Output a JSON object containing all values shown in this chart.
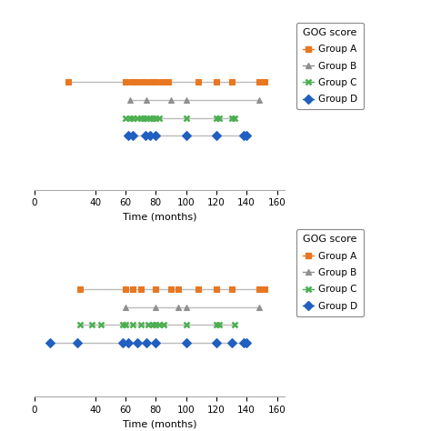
{
  "top_panel": {
    "group_A": {
      "y": 0.0,
      "points": [
        22,
        60,
        64,
        68,
        72,
        76,
        80,
        84,
        88,
        108,
        120,
        130,
        148,
        152
      ],
      "line_x": [
        22,
        152
      ]
    },
    "group_B": {
      "y": -0.07,
      "points": [
        63,
        74,
        90,
        100,
        148
      ],
      "line_x": [
        63,
        148
      ]
    },
    "group_C": {
      "y": -0.14,
      "points": [
        60,
        63,
        65,
        68,
        70,
        72,
        74,
        76,
        78,
        80,
        82,
        100,
        120,
        122,
        130,
        132
      ],
      "line_x": [
        60,
        132
      ]
    },
    "group_D": {
      "y": -0.21,
      "points": [
        62,
        65,
        73,
        76,
        80,
        100,
        120,
        138,
        140
      ],
      "line_x": [
        62,
        140
      ]
    }
  },
  "bottom_panel": {
    "group_A": {
      "y": 0.0,
      "points": [
        30,
        60,
        65,
        70,
        80,
        90,
        95,
        108,
        120,
        130,
        148,
        152
      ],
      "line_x": [
        30,
        152
      ]
    },
    "group_B": {
      "y": -0.07,
      "points": [
        60,
        80,
        95,
        100,
        148
      ],
      "line_x": [
        60,
        148
      ]
    },
    "group_C": {
      "y": -0.14,
      "points": [
        30,
        38,
        44,
        58,
        60,
        65,
        70,
        75,
        78,
        80,
        82,
        85,
        100,
        120,
        122,
        132
      ],
      "line_x": [
        30,
        132
      ]
    },
    "group_D": {
      "y": -0.21,
      "points": [
        10,
        28,
        58,
        62,
        68,
        74,
        80,
        100,
        120,
        130,
        138,
        140
      ],
      "line_x": [
        10,
        140
      ]
    }
  },
  "group_A_color": "#E87722",
  "group_B_color": "#909090",
  "group_C_color": "#4CAF50",
  "group_D_color": "#2060C0",
  "group_A_marker": "s",
  "group_B_marker": "^",
  "group_C_marker": "x",
  "group_D_marker": "D",
  "line_color": "#BBBBBB",
  "xlim": [
    0,
    165
  ],
  "xticks": [
    0,
    40,
    60,
    80,
    100,
    120,
    140,
    160
  ],
  "xlabel": "Time (months)",
  "legend_title": "GOG score",
  "legend_labels": [
    "Group A",
    "Group B",
    "Group C",
    "Group D"
  ],
  "marker_size": 5,
  "line_width": 1.0,
  "bg_color": "#FFFFFF"
}
